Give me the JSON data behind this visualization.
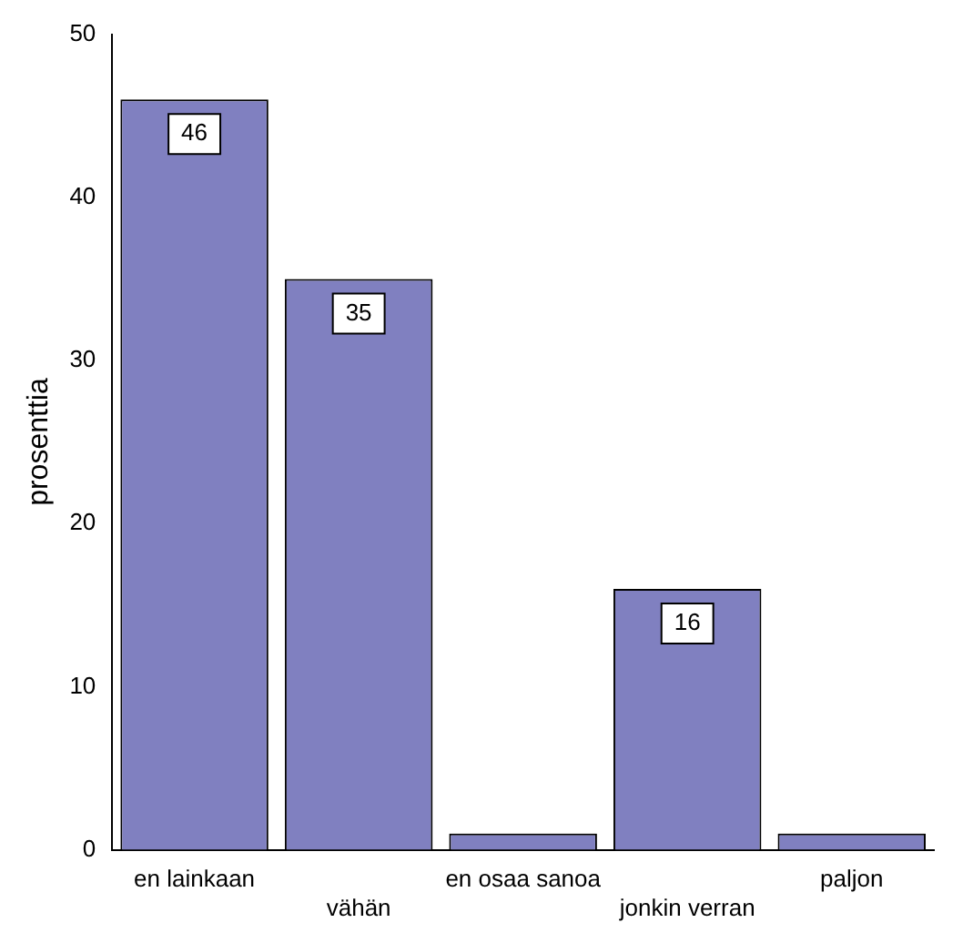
{
  "chart_data": {
    "type": "bar",
    "categories": [
      "en lainkaan",
      "vähän",
      "en osaa sanoa",
      "jonkin verran",
      "paljon"
    ],
    "values": [
      46,
      35,
      1,
      16,
      1
    ],
    "value_labels": [
      "46",
      "35",
      null,
      "16",
      null
    ],
    "color": "#8080c0",
    "ylabel": "prosenttia",
    "ylim": [
      0,
      50
    ],
    "yticks": [
      0,
      10,
      20,
      30,
      40,
      50
    ],
    "grid": false,
    "legend": false
  }
}
